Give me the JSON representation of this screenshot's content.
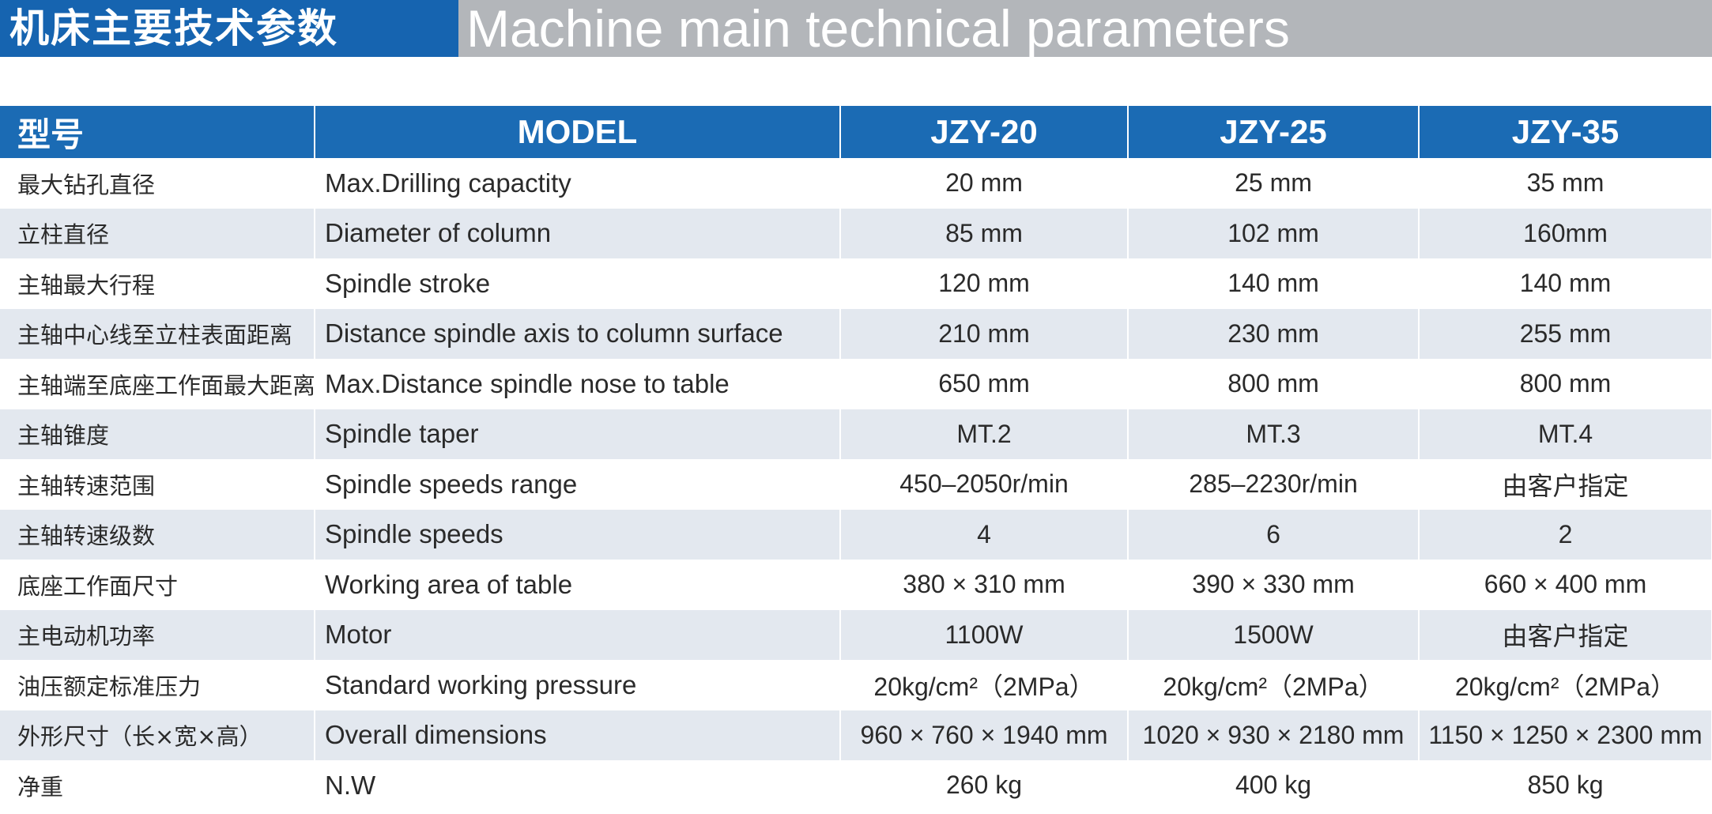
{
  "header": {
    "title_cn": "机床主要技术参数",
    "title_en": "Machine main technical parameters"
  },
  "table": {
    "header": [
      "型号",
      "MODEL",
      "JZY-20",
      "JZY-25",
      "JZY-35"
    ],
    "rows": [
      [
        "最大钻孔直径",
        "Max.Drilling capactity",
        "20 mm",
        "25 mm",
        "35 mm"
      ],
      [
        "立柱直径",
        "Diameter of column",
        "85 mm",
        "102 mm",
        "160mm"
      ],
      [
        "主轴最大行程",
        "Spindle stroke",
        "120 mm",
        "140 mm",
        "140 mm"
      ],
      [
        "主轴中心线至立柱表面距离",
        "Distance spindle axis to column surface",
        "210 mm",
        "230 mm",
        "255 mm"
      ],
      [
        "主轴端至底座工作面最大距离",
        "Max.Distance spindle nose to table",
        "650 mm",
        "800 mm",
        "800 mm"
      ],
      [
        "主轴锥度",
        "Spindle taper",
        "MT.2",
        "MT.3",
        "MT.4"
      ],
      [
        "主轴转速范围",
        "Spindle speeds range",
        "450–2050r/min",
        "285–2230r/min",
        "由客户指定"
      ],
      [
        "主轴转速级数",
        "Spindle speeds",
        "4",
        "6",
        "2"
      ],
      [
        "底座工作面尺寸",
        "Working area of table",
        "380 × 310 mm",
        "390 × 330 mm",
        "660 × 400 mm"
      ],
      [
        "主电动机功率",
        "Motor",
        "1100W",
        "1500W",
        "由客户指定"
      ],
      [
        "油压额定标准压力",
        "Standard working pressure",
        "20kg/cm²（2MPa）",
        "20kg/cm²（2MPa）",
        "20kg/cm²（2MPa）"
      ],
      [
        "外形尺寸（长×宽×高）",
        "Overall dimensions",
        "960 × 760 × 1940 mm",
        "1020 × 930 × 2180 mm",
        "1150 × 1250 × 2300 mm"
      ],
      [
        "净重",
        "N.W",
        "260 kg",
        "400 kg",
        "850 kg"
      ]
    ]
  }
}
